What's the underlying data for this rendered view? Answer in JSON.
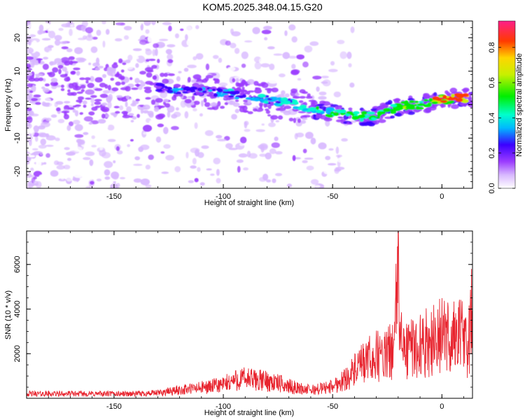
{
  "title": "KOM5.2025.348.04.15.G20",
  "colorbar": {
    "label": "Normalized spectral amplitude",
    "ticks": [
      0.0,
      0.2,
      0.4,
      0.6,
      0.8
    ],
    "tick_labels": [
      "0.0",
      "0.2",
      "0.4",
      "0.6",
      "0.8"
    ]
  },
  "chart_data": [
    {
      "type": "heatmap",
      "title": "",
      "xlabel": "Height of straight line (km)",
      "ylabel": "Frequency (Hz)",
      "xlim": [
        -190,
        14
      ],
      "ylim": [
        -25,
        25
      ],
      "xticks": [
        -150,
        -100,
        -50,
        0
      ],
      "yticks": [
        -20,
        -10,
        0,
        10,
        20
      ],
      "ridge": {
        "x": [
          -130,
          -120,
          -110,
          -100,
          -90,
          -80,
          -70,
          -60,
          -50,
          -40,
          -30,
          -20,
          -10,
          0,
          10
        ],
        "frequency": [
          5.0,
          4.5,
          4.0,
          3.5,
          2.5,
          1.5,
          0.5,
          -1.0,
          -2.5,
          -3.5,
          -3.5,
          -0.5,
          0.0,
          1.5,
          2.0
        ]
      }
    },
    {
      "type": "line",
      "title": "",
      "xlabel": "Height of straight line (km)",
      "ylabel": "SNR (10 * v/v)",
      "xlim": [
        -190,
        14
      ],
      "ylim": [
        0,
        7500
      ],
      "xticks": [
        -150,
        -100,
        -50,
        0
      ],
      "yticks": [
        2000,
        4000,
        6000
      ],
      "series": [
        {
          "color": "#e8252f",
          "x": [
            -190,
            -180,
            -170,
            -160,
            -150,
            -140,
            -130,
            -125,
            -120,
            -110,
            -100,
            -95,
            -90,
            -85,
            -80,
            -75,
            -70,
            -65,
            -60,
            -55,
            -50,
            -45,
            -40,
            -35,
            -30,
            -25,
            -22,
            -20,
            -18,
            -15,
            -10,
            -5,
            0,
            5,
            8,
            10,
            12,
            14
          ],
          "y": [
            300,
            300,
            300,
            300,
            300,
            300,
            350,
            450,
            550,
            700,
            900,
            1200,
            1300,
            1200,
            1150,
            1000,
            800,
            650,
            550,
            650,
            800,
            1200,
            1800,
            2400,
            2800,
            2800,
            3500,
            7500,
            3000,
            3300,
            3500,
            3800,
            4200,
            4000,
            4500,
            3900,
            3200,
            6200
          ]
        }
      ]
    }
  ]
}
